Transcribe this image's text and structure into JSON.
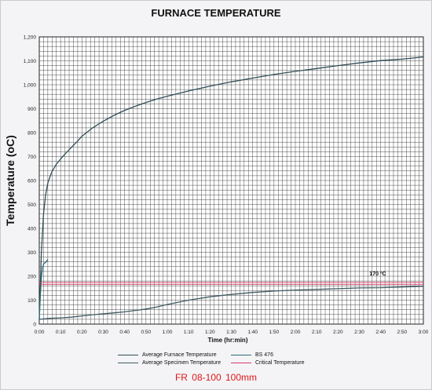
{
  "chart_data": {
    "type": "line",
    "title": "FURNACE TEMPERATURE",
    "xlabel": "Time (hr:min)",
    "ylabel": "Temperature (oC)",
    "x_ticks": [
      "0:00",
      "0:10",
      "0:20",
      "0:30",
      "0:40",
      "0:50",
      "1:00",
      "1:10",
      "1:20",
      "1:30",
      "1:40",
      "1:50",
      "2:00",
      "2:10",
      "2:20",
      "2:30",
      "2:40",
      "2:50",
      "3:00"
    ],
    "y_ticks": [
      "0",
      "100",
      "200",
      "300",
      "400",
      "500",
      "600",
      "700",
      "800",
      "900",
      "1,000",
      "1,100",
      "1,200"
    ],
    "xlim": [
      0,
      180
    ],
    "ylim": [
      0,
      1200
    ],
    "grid": true,
    "annotation": "170 ºC",
    "series": [
      {
        "name": "Average Furnace Temperature",
        "color": "#2f4e57",
        "x": [
          0,
          1,
          2,
          3,
          4,
          5,
          6,
          8,
          10,
          12,
          15,
          18,
          20,
          25,
          30,
          35,
          40,
          45,
          50,
          55,
          60,
          70,
          80,
          90,
          100,
          110,
          120,
          130,
          140,
          150,
          160,
          170,
          180
        ],
        "y": [
          20,
          300,
          460,
          540,
          590,
          615,
          638,
          668,
          690,
          710,
          738,
          765,
          785,
          820,
          848,
          872,
          893,
          910,
          926,
          940,
          952,
          974,
          994,
          1012,
          1028,
          1043,
          1056,
          1068,
          1080,
          1091,
          1101,
          1107,
          1116
        ]
      },
      {
        "name": "BS 476",
        "color": "#2b6e7a",
        "x": [
          0,
          0.5,
          1,
          1.5,
          2,
          2.5,
          3,
          4
        ],
        "y": [
          20,
          120,
          195,
          235,
          250,
          255,
          258,
          270
        ]
      },
      {
        "name": "Average Specimen Temperature",
        "color": "#3f5a63",
        "x": [
          0,
          5,
          10,
          15,
          20,
          25,
          30,
          35,
          40,
          45,
          50,
          55,
          60,
          70,
          80,
          90,
          100,
          110,
          120,
          130,
          140,
          150,
          160,
          170,
          180
        ],
        "y": [
          20,
          24,
          26,
          29,
          34,
          39,
          43,
          47,
          51,
          57,
          63,
          71,
          82,
          100,
          114,
          124,
          132,
          138,
          142,
          145,
          148,
          151,
          152,
          155,
          158
        ]
      },
      {
        "name": "Critical Temperature",
        "color": "#d23a64",
        "x": [
          0,
          180
        ],
        "y": [
          170,
          170
        ]
      }
    ]
  },
  "footer": {
    "caption": "FR 08-100    100mm"
  }
}
